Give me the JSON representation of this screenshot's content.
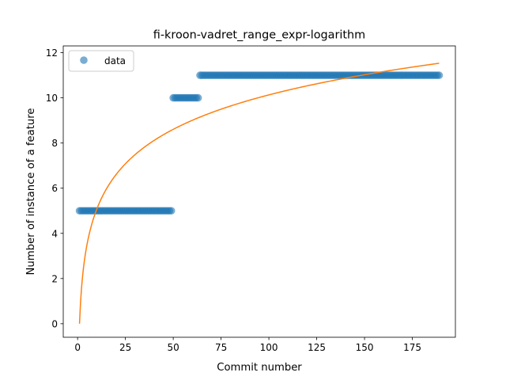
{
  "chart_data": {
    "type": "scatter",
    "title": "fi-kroon-vadret_range_expr-logarithm",
    "xlabel": "Commit number",
    "ylabel": "Number of instance of a feature",
    "xlim": [
      -7.5,
      197.5
    ],
    "ylim": [
      -0.6,
      12.3
    ],
    "x_ticks": [
      0,
      25,
      50,
      75,
      100,
      125,
      150,
      175
    ],
    "y_ticks": [
      0,
      2,
      4,
      6,
      8,
      10,
      12
    ],
    "grid": false,
    "legend": {
      "position": "top-left",
      "entries": [
        "data"
      ]
    },
    "colors": {
      "data": "#1f77b4",
      "fit": "#ff7f0e"
    },
    "series": [
      {
        "name": "data",
        "kind": "scatter",
        "segments": [
          {
            "x_start": 1,
            "x_end": 49,
            "y": 5
          },
          {
            "x_start": 50,
            "x_end": 63,
            "y": 10
          },
          {
            "x_start": 64,
            "x_end": 189,
            "y": 11
          }
        ]
      },
      {
        "kind": "line",
        "model": "y = a * ln(x)",
        "a": 2.2,
        "x_start": 1,
        "x_end": 189
      }
    ]
  }
}
